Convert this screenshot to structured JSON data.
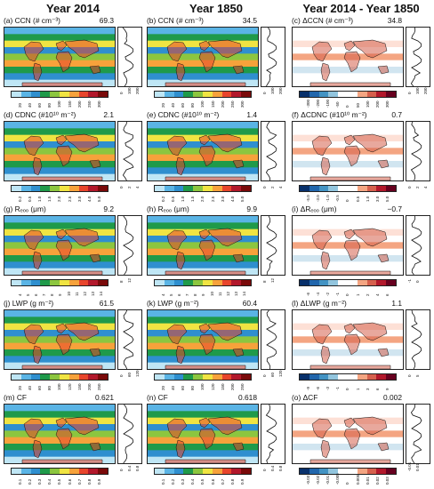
{
  "titles": [
    "Year 2014",
    "Year 1850",
    "Year 2014 - Year 1850"
  ],
  "panels": [
    {
      "id": "a",
      "label": "(a) CCN (# cm⁻³)",
      "value": "69.3",
      "scheme": "seq",
      "ticks": [
        "20",
        "40",
        "60",
        "80",
        "100",
        "150",
        "200",
        "250",
        "300"
      ],
      "zticks": [
        "0",
        "100",
        "200"
      ]
    },
    {
      "id": "b",
      "label": "(b) CCN (# cm⁻³)",
      "value": "34.5",
      "scheme": "seq",
      "ticks": [
        "20",
        "40",
        "60",
        "80",
        "100",
        "150",
        "200",
        "250",
        "300"
      ],
      "zticks": [
        "0",
        "100",
        "200"
      ]
    },
    {
      "id": "c",
      "label": "(c) ΔCCN (# cm⁻³)",
      "value": "34.8",
      "scheme": "div",
      "ticks": [
        "-300",
        "-200",
        "-100",
        "-50",
        "0",
        "50",
        "100",
        "200",
        "300"
      ],
      "zticks": [
        "0",
        "100",
        "200"
      ]
    },
    {
      "id": "d",
      "label": "(d) CDNC (#10¹⁰ m⁻²)",
      "value": "2.1",
      "scheme": "seq",
      "ticks": [
        "0.2",
        "0.5",
        "1.0",
        "1.5",
        "2.0",
        "2.5",
        "3.0",
        "4.0",
        "5.0"
      ],
      "zticks": [
        "0",
        "2",
        "4"
      ]
    },
    {
      "id": "e",
      "label": "(e) CDNC (#10¹⁰ m⁻²)",
      "value": "1.4",
      "scheme": "seq",
      "ticks": [
        "0.2",
        "0.5",
        "1.0",
        "1.5",
        "2.0",
        "2.5",
        "3.0",
        "4.0",
        "5.0"
      ],
      "zticks": [
        "0",
        "2",
        "4"
      ]
    },
    {
      "id": "f",
      "label": "(f) ΔCDNC (#10¹⁰ m⁻²)",
      "value": "0.7",
      "scheme": "div",
      "ticks": [
        "-5.0",
        "-3.0",
        "-1.0",
        "-0.5",
        "0",
        "0.5",
        "1.0",
        "3.0",
        "5.0"
      ],
      "zticks": [
        "0",
        "2",
        "4"
      ]
    },
    {
      "id": "g",
      "label": "(g) Rₑₒₒ (μm)",
      "value": "9.2",
      "scheme": "seq",
      "ticks": [
        "4",
        "5",
        "6",
        "7",
        "8",
        "9",
        "10",
        "11",
        "12",
        "13",
        "14"
      ],
      "zticks": [
        "8",
        "12"
      ]
    },
    {
      "id": "h",
      "label": "(h) Rₑₒₒ (μm)",
      "value": "9.9",
      "scheme": "seq",
      "ticks": [
        "4",
        "5",
        "6",
        "7",
        "8",
        "9",
        "10",
        "11",
        "12",
        "13",
        "14"
      ],
      "zticks": [
        "8",
        "12"
      ]
    },
    {
      "id": "i",
      "label": "(i) ΔRₑₒₒ (μm)",
      "value": "−0.7",
      "scheme": "div",
      "ticks": [
        "-6",
        "-4",
        "-2",
        "-1",
        "0",
        "1",
        "2",
        "4",
        "6"
      ],
      "zticks": [
        "-1",
        "0"
      ]
    },
    {
      "id": "j",
      "label": "(j) LWP (g m⁻²)",
      "value": "61.5",
      "scheme": "seq",
      "ticks": [
        "20",
        "40",
        "60",
        "80",
        "100",
        "120",
        "150",
        "200",
        "250"
      ],
      "zticks": [
        "0",
        "60",
        "120"
      ]
    },
    {
      "id": "k",
      "label": "(k) LWP (g m⁻²)",
      "value": "60.4",
      "scheme": "seq",
      "ticks": [
        "20",
        "40",
        "60",
        "80",
        "100",
        "120",
        "150",
        "200",
        "250"
      ],
      "zticks": [
        "0",
        "60",
        "120"
      ]
    },
    {
      "id": "l",
      "label": "(l) ΔLWP (g m⁻²)",
      "value": "1.1",
      "scheme": "div",
      "ticks": [
        "-9",
        "-6",
        "-3",
        "-1",
        "0",
        "1",
        "3",
        "6",
        "9"
      ],
      "zticks": [
        "0",
        "5"
      ]
    },
    {
      "id": "m",
      "label": "(m) CF",
      "value": "0.621",
      "scheme": "seq",
      "ticks": [
        "0.1",
        "0.2",
        "0.3",
        "0.4",
        "0.5",
        "0.6",
        "0.7",
        "0.8",
        "0.9"
      ],
      "zticks": [
        "0",
        "0.4",
        "0.8"
      ]
    },
    {
      "id": "n",
      "label": "(n) CF",
      "value": "0.618",
      "scheme": "seq",
      "ticks": [
        "0.1",
        "0.2",
        "0.3",
        "0.4",
        "0.5",
        "0.6",
        "0.7",
        "0.8",
        "0.9"
      ],
      "zticks": [
        "0",
        "0.4",
        "0.8"
      ]
    },
    {
      "id": "o",
      "label": "(o) ΔCF",
      "value": "0.002",
      "scheme": "div",
      "ticks": [
        "-0.03",
        "-0.02",
        "-0.01",
        "-0.005",
        "0",
        "0.005",
        "0.01",
        "0.02",
        "0.03"
      ],
      "zticks": [
        "-0.01",
        "0.01"
      ]
    }
  ],
  "colors": {
    "seq": [
      "#bfe6f5",
      "#5ab4e5",
      "#2f8fcf",
      "#1f9a4a",
      "#8cc63f",
      "#f0e442",
      "#f7a23b",
      "#e8452c",
      "#b2182b",
      "#7a0a0a"
    ],
    "div": [
      "#08306b",
      "#2166ac",
      "#4393c3",
      "#92c5de",
      "#ffffff",
      "#ffffff",
      "#f4a582",
      "#d6604d",
      "#b2182b",
      "#67001f"
    ]
  }
}
